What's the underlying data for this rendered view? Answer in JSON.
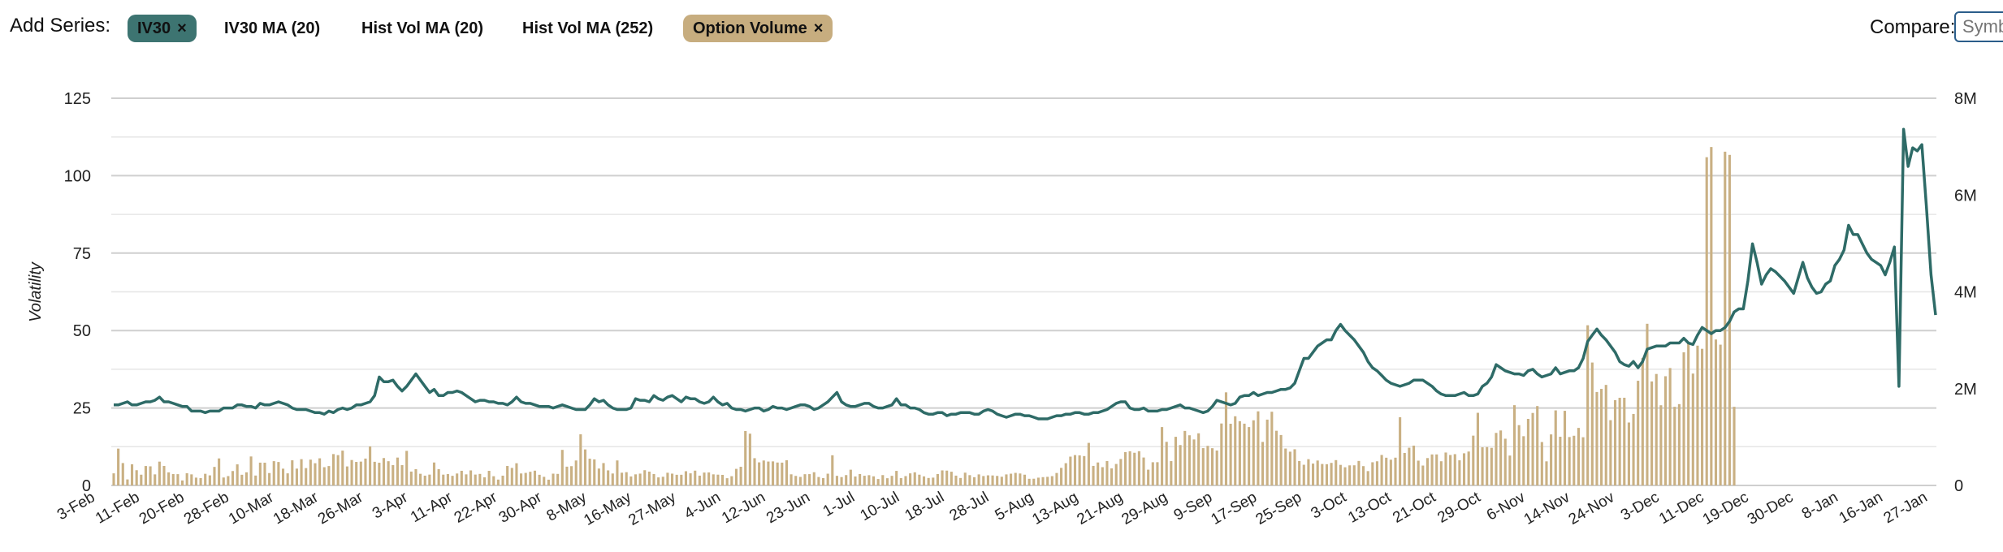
{
  "toolbar": {
    "add_series_label": "Add Series:",
    "series_buttons": [
      {
        "label": "IV30",
        "active": true,
        "close": "×"
      },
      {
        "label": "IV30 MA (20)",
        "active": false
      },
      {
        "label": "Hist Vol MA (20)",
        "active": false
      },
      {
        "label": "Hist Vol MA (252)",
        "active": false
      },
      {
        "label": "Option Volume",
        "active": true,
        "close": "×"
      }
    ],
    "compare_label": "Compare:",
    "compare_placeholder": "Symbol"
  },
  "colors": {
    "iv_line": "#2e6b67",
    "volume_bar": "#c9b083",
    "grid": "#d3d3d3",
    "iv_pill": "#3d7471",
    "volume_pill": "#c7ad7f"
  },
  "chart_data": {
    "type": "line+bar",
    "ylabel": "Volatility",
    "y_left": {
      "range": [
        0,
        125
      ],
      "ticks": [
        "0",
        "25",
        "50",
        "75",
        "100",
        "125"
      ]
    },
    "y_right": {
      "range": [
        0,
        8000000
      ],
      "ticks": [
        "0",
        "2M",
        "4M",
        "6M",
        "8M"
      ]
    },
    "x_tick_labels": [
      "3-Feb",
      "11-Feb",
      "20-Feb",
      "28-Feb",
      "10-Mar",
      "18-Mar",
      "26-Mar",
      "3-Apr",
      "11-Apr",
      "22-Apr",
      "30-Apr",
      "8-May",
      "16-May",
      "27-May",
      "4-Jun",
      "12-Jun",
      "23-Jun",
      "1-Jul",
      "10-Jul",
      "18-Jul",
      "28-Jul",
      "5-Aug",
      "13-Aug",
      "21-Aug",
      "29-Aug",
      "9-Sep",
      "17-Sep",
      "25-Sep",
      "3-Oct",
      "13-Oct",
      "21-Oct",
      "29-Oct",
      "6-Nov",
      "14-Nov",
      "24-Nov",
      "3-Dec",
      "11-Dec",
      "19-Dec",
      "30-Dec",
      "8-Jan",
      "16-Jan",
      "27-Jan"
    ],
    "series": [
      {
        "name": "IV30",
        "axis": "left",
        "kind": "line",
        "values": [
          26,
          26,
          26.5,
          27,
          26,
          26,
          26.5,
          27,
          27,
          27.5,
          28.5,
          27,
          27,
          26.5,
          26,
          25.5,
          25.5,
          24,
          24,
          24,
          23.5,
          24,
          24,
          24,
          25,
          25,
          25,
          26,
          26,
          25.5,
          25.5,
          25,
          26.5,
          26,
          26,
          26.5,
          27,
          26.5,
          26,
          25,
          24.5,
          24.5,
          24.5,
          24,
          23.5,
          23.5,
          23,
          24,
          23.5,
          24.5,
          25,
          24.5,
          25,
          26,
          26,
          26.5,
          27,
          29,
          35,
          33.5,
          33.5,
          34,
          32,
          30.5,
          32,
          34,
          36,
          34,
          32,
          30,
          31,
          29,
          29,
          30,
          30,
          30.5,
          30,
          29,
          28,
          27,
          27.5,
          27.5,
          27,
          27,
          26.5,
          26.5,
          26,
          27,
          28.5,
          27,
          26.5,
          26.5,
          26,
          25.5,
          25.5,
          25.5,
          25,
          25.5,
          26,
          25.5,
          25,
          24.5,
          24.5,
          24.5,
          26,
          28,
          27,
          27.5,
          26,
          25,
          24.5,
          24.5,
          24.5,
          25,
          28,
          27.5,
          27.5,
          27,
          29,
          28,
          27.5,
          28.5,
          29,
          28,
          27,
          28.5,
          28,
          28,
          27,
          26.5,
          27,
          28.5,
          27,
          26,
          26.5,
          25,
          24.5,
          24.5,
          24,
          24.5,
          25,
          25,
          24,
          24.5,
          25.5,
          25,
          25,
          24.5,
          25,
          25.5,
          26,
          26,
          25.5,
          24.5,
          25,
          26,
          27,
          28.5,
          30,
          27,
          26,
          25.5,
          25.5,
          26,
          26.5,
          26.5,
          25.5,
          25,
          25,
          25.5,
          26,
          28,
          26,
          26,
          25,
          25,
          24.5,
          23.5,
          23,
          23,
          23.5,
          23.5,
          22.5,
          23,
          23,
          23.5,
          23.5,
          23.5,
          23,
          23,
          24,
          24.5,
          24,
          23,
          22.5,
          22,
          22.5,
          23,
          23,
          22.5,
          22.5,
          22,
          21.5,
          21.5,
          21.5,
          22,
          22.5,
          22.5,
          23,
          23,
          23.5,
          23.5,
          23,
          23,
          23.5,
          23.5,
          24,
          24.5,
          25.5,
          26.5,
          27,
          27,
          25,
          24.5,
          24.5,
          25,
          24,
          24,
          24,
          24.5,
          24.5,
          25,
          25.5,
          26,
          25,
          25,
          24.5,
          24,
          23.5,
          24,
          25.5,
          27.5,
          27,
          26.5,
          26,
          26.5,
          28.5,
          29,
          29,
          30,
          29,
          29.5,
          30,
          30,
          30.5,
          31,
          31,
          31.5,
          33,
          37,
          41,
          41,
          43,
          45,
          46,
          47,
          47,
          50,
          52,
          50,
          48.5,
          47,
          45,
          43,
          40,
          38,
          37,
          35.5,
          34,
          33,
          32.5,
          32,
          32.5,
          33,
          34,
          34,
          34,
          33,
          32,
          30.5,
          29.5,
          29,
          29,
          29,
          29.5,
          30,
          29,
          29,
          29.5,
          32,
          33,
          35,
          39,
          38,
          37,
          36.5,
          36,
          36,
          35.5,
          37,
          37.5,
          36,
          35,
          35.5,
          36,
          38,
          36,
          36.5,
          37,
          37,
          38,
          41,
          46.5,
          48.5,
          50.5,
          48.5,
          47,
          45,
          43,
          40,
          39,
          38.5,
          40,
          38,
          40,
          44,
          44.5,
          45,
          45,
          45,
          46,
          46,
          46,
          47.5,
          46,
          45.5,
          48.5,
          51,
          50,
          49,
          50,
          50,
          51,
          53,
          56,
          57,
          57,
          66,
          78,
          72,
          65,
          68,
          70,
          69,
          67.5,
          66,
          64,
          62,
          67,
          72,
          67,
          64,
          62,
          62.5,
          65,
          66,
          71,
          73,
          76,
          84,
          81,
          81,
          78,
          75,
          73,
          72,
          71,
          68,
          72,
          77,
          32,
          115,
          103,
          109,
          108,
          110,
          90,
          68,
          55
        ]
      },
      {
        "name": "Option Volume",
        "axis": "right",
        "kind": "bar",
        "values": [
          249870,
          760760,
          462410,
          124150,
          437620,
          314670,
          221890,
          401320,
          394640,
          228770,
          492020,
          402330,
          269960,
          234560,
          233290,
          103120,
          251720,
          228870,
          161280,
          151700,
          240640,
          208220,
          382790,
          558130,
          163950,
          193350,
          297620,
          435640,
          220530,
          270930,
          598560,
          204320,
          470900,
          469920,
          255870,
          501660,
          484130,
          346320,
          249870,
          519260,
          347400,
          542670,
          357950,
          532630,
          458780,
          560450,
          376770,
          400770,
          648020,
          626200,
          719310,
          392660,
          525320,
          485690,
          492480,
          555070,
          806320,
          488550,
          468770,
          566100,
          500580,
          420350,
          575780,
          419940,
          714100,
          286480,
          336980,
          240720,
          201880,
          223770,
          473940,
          336480,
          223120,
          234520,
          198760,
          246510,
          302720,
          229000,
          310540,
          224380,
          238150,
          167290,
          301560,
          190520,
          120790,
          201860,
          402130,
          361630,
          458700,
          247240,
          259250,
          282110,
          305040,
          220240,
          178000,
          118990,
          243400,
          238510,
          734760,
          387840,
          398310,
          515580,
          1056330,
          743950,
          552910,
          538370,
          348620,
          462240,
          311350,
          246680,
          516370,
          262990,
          273800,
          185430,
          229310,
          244130,
          314530,
          285460,
          236270,
          166350,
          179100,
          262170,
          243700,
          220100,
          220480,
          293930,
          250180,
          305710,
          202380,
          266000,
          268290,
          229300,
          222690,
          218430,
          149360,
          190850,
          342580,
          385510,
          1124440,
          1069350,
          563000,
          476770,
          515140,
          493640,
          496990,
          473360,
          471360,
          520330,
          229840,
          197010,
          176310,
          232190,
          233740,
          272740,
          174370,
          151130,
          242680,
          623310,
          198680,
          172700,
          214000,
          325100,
          185130,
          235600,
          200000,
          212300,
          188250,
          132280,
          213680,
          148980,
          198540,
          300600,
          152080,
          193060,
          249560,
          271330,
          222300,
          187280,
          153990,
          161400,
          234800,
          310920,
          306400,
          283680,
          202650,
          153880,
          263700,
          212710,
          170280,
          228210,
          194560,
          208840,
          206130,
          197120,
          179490,
          227900,
          242680,
          259410,
          246770,
          222140,
          137230,
          138920,
          160800,
          171630,
          178100,
          192230,
          257260,
          362480,
          459820,
          595240,
          626960,
          620600,
          606690,
          879290,
          403740,
          474340,
          377500,
          503080,
          352240,
          443560,
          546440,
          687540,
          706350,
          675100,
          706960,
          576940,
          325670,
          479320,
          480260,
          1205900,
          900780,
          502380,
          1004680,
          834330,
          1126140,
          1036420,
          950080,
          1077020,
          770570,
          818160,
          769020,
          721320,
          1279900,
          1923510,
          1274480,
          1428940,
          1327710,
          1276090,
          1205790,
          1345930,
          1530980,
          898800,
          1359760,
          1522780,
          1129660,
          1041940,
          762320,
          697250,
          747470,
          503720,
          427170,
          542210,
          451600,
          514710,
          442950,
          438700,
          465960,
          523160,
          424750,
          375400,
          414520,
          416080,
          505860,
          398860,
          296250,
          478780,
          498950,
          629700,
          572740,
          531240,
          573760,
          1408530,
          671420,
          778880,
          822590,
          512290,
          410670,
          565640,
          640370,
          641030,
          499780,
          680250,
          628790,
          646510,
          519130,
          663970,
          700330,
          1028860,
          1500680,
          788000,
          793150,
          776770,
          1085360,
          1135580,
          965240,
          617240,
          1658280,
          1245370,
          1017350,
          1375230,
          1497620,
          1640440,
          896550,
          497890,
          1054340,
          1550570,
          1005800,
          1541700,
          1000000,
          1026630,
          1188850,
          995690,
          3309090,
          2539570,
          1930720,
          1994730,
          2077150,
          1348660,
          1762780,
          1811040,
          1811710,
          1299960,
          1477190,
          2162410,
          2635750,
          3340230,
          2148680,
          2302980,
          1656750,
          2256300,
          2425340,
          1624410,
          1680080,
          2750030,
          2949530,
          2311000,
          2888100,
          2823000,
          6781350,
          6991770,
          3015050,
          2908750,
          6895280,
          6829300,
          1624790
        ]
      }
    ]
  }
}
